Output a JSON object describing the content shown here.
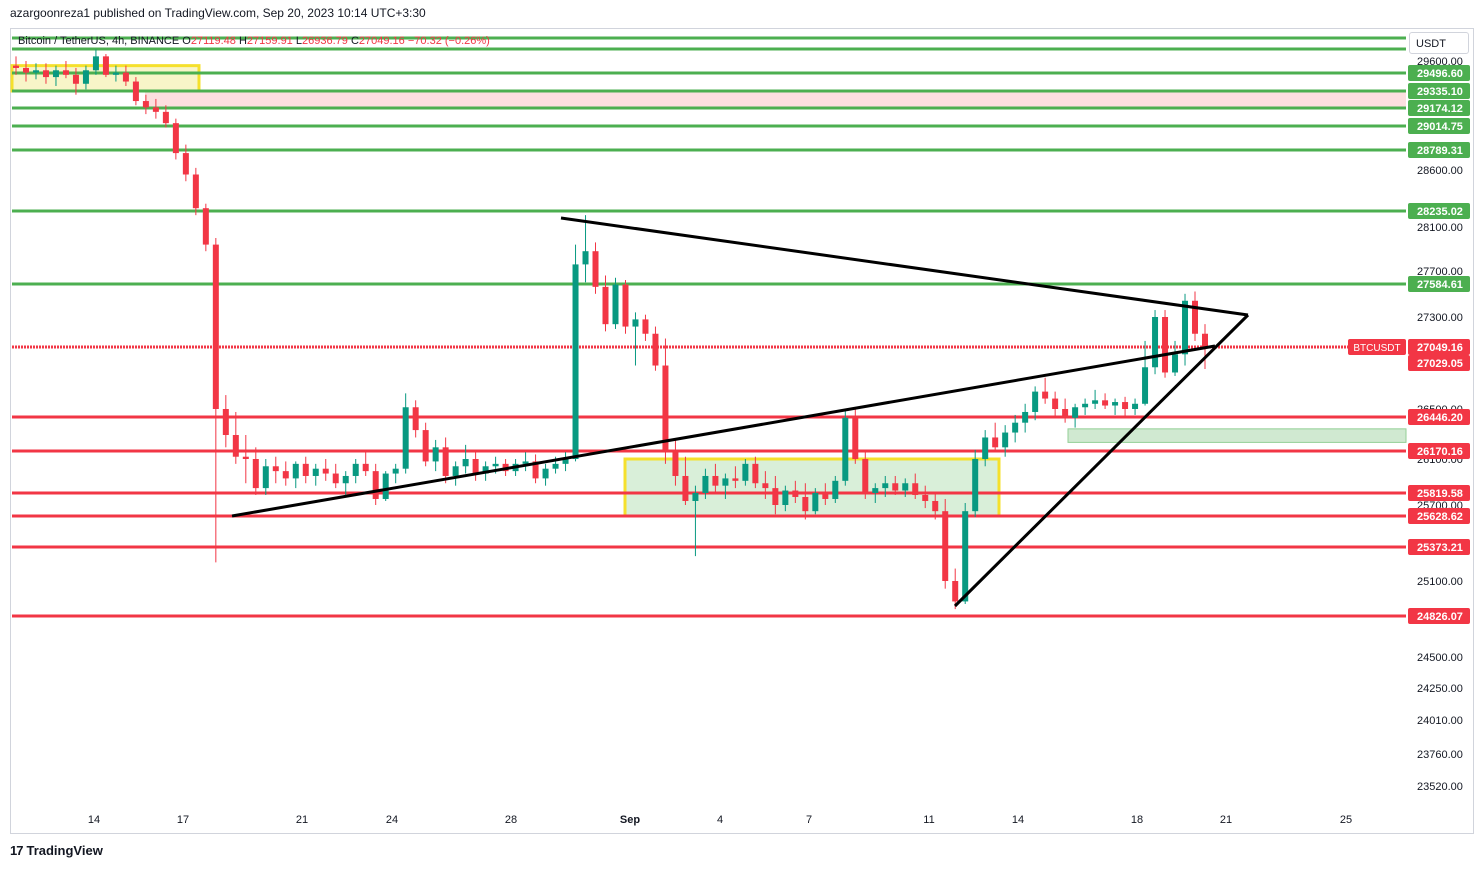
{
  "header": {
    "published": "azargoonreza1 published on TradingView.com, Sep 20, 2023 10:14 UTC+3:30"
  },
  "legend": {
    "symbol": "Bitcoin / TetherUS, 4h, BINANCE",
    "o_label": "O",
    "o_value": "27119.48",
    "h_label": "H",
    "h_value": "27159.91",
    "l_label": "L",
    "l_value": "26936.79",
    "c_label": "C",
    "c_value": "27049.16",
    "change": "−70.32 (−0.26%)"
  },
  "currency_button": "USDT",
  "footer": {
    "brand": "TradingView",
    "icon": "tradingview-logo-icon"
  },
  "colors": {
    "up": "#089981",
    "down": "#f23645",
    "support": "#f23645",
    "resistance": "#4caf50",
    "zone_yellow": "#f5e02c",
    "zone_green_fill": "#c8e6c9",
    "triangle": "#000000"
  },
  "chart_data": {
    "type": "candlestick",
    "symbol": "BTCUSDT",
    "timeframe": "4h",
    "x_ticks": [
      "14",
      "17",
      "21",
      "24",
      "28",
      "Sep",
      "4",
      "7",
      "11",
      "14",
      "18",
      "21",
      "25"
    ],
    "y_ticks": [
      29600,
      28600,
      28100,
      27700,
      27300,
      26500,
      26100,
      25700,
      25100,
      24500,
      24250,
      24010,
      23760,
      23520
    ],
    "y_tick_labels": [
      "29600.00",
      "28600.00",
      "28100.00",
      "27700.00",
      "27300.00",
      "26500.00",
      "26100.00",
      "25700.00",
      "25100.00",
      "24500.00",
      "24250.00",
      "24010.00",
      "23760.00",
      "23520.00"
    ],
    "ylim": [
      23400,
      29750
    ],
    "current_price": {
      "label": "BTCUSDT",
      "value": "27049.16"
    },
    "resistance_levels": [
      "29496.60",
      "29335.10",
      "29174.12",
      "29014.75",
      "28789.31",
      "28235.02",
      "27584.61"
    ],
    "support_levels": [
      "27029.05",
      "26446.20",
      "26170.16",
      "25819.58",
      "25628.62",
      "25373.21",
      "24826.07"
    ],
    "candles_approx": [
      [
        29560,
        29640,
        29480,
        29540
      ],
      [
        29540,
        29600,
        29420,
        29500
      ],
      [
        29500,
        29580,
        29440,
        29520
      ],
      [
        29520,
        29580,
        29400,
        29460
      ],
      [
        29460,
        29560,
        29380,
        29520
      ],
      [
        29520,
        29600,
        29450,
        29480
      ],
      [
        29480,
        29540,
        29300,
        29400
      ],
      [
        29400,
        29560,
        29350,
        29520
      ],
      [
        29520,
        29700,
        29480,
        29640
      ],
      [
        29640,
        29660,
        29460,
        29480
      ],
      [
        29480,
        29560,
        29420,
        29500
      ],
      [
        29500,
        29560,
        29380,
        29420
      ],
      [
        29420,
        29460,
        29200,
        29240
      ],
      [
        29240,
        29300,
        29120,
        29180
      ],
      [
        29180,
        29260,
        29080,
        29140
      ],
      [
        29140,
        29200,
        29000,
        29040
      ],
      [
        29040,
        29080,
        28700,
        28760
      ],
      [
        28760,
        28840,
        28500,
        28560
      ],
      [
        28560,
        28620,
        28200,
        28260
      ],
      [
        28260,
        28300,
        27880,
        27940
      ],
      [
        27940,
        28000,
        25250,
        26500
      ],
      [
        26500,
        26660,
        26200,
        26300
      ],
      [
        26300,
        26480,
        26060,
        26120
      ],
      [
        26120,
        26300,
        25900,
        26100
      ],
      [
        26100,
        26200,
        25800,
        25860
      ],
      [
        25860,
        26100,
        25800,
        26040
      ],
      [
        26040,
        26120,
        25900,
        26000
      ],
      [
        26000,
        26080,
        25880,
        25940
      ],
      [
        25940,
        26080,
        25860,
        26060
      ],
      [
        26060,
        26120,
        25900,
        25960
      ],
      [
        25960,
        26060,
        25880,
        26020
      ],
      [
        26020,
        26100,
        25920,
        25980
      ],
      [
        25980,
        26060,
        25860,
        25900
      ],
      [
        25900,
        26000,
        25780,
        25960
      ],
      [
        25960,
        26100,
        25900,
        26060
      ],
      [
        26060,
        26160,
        25960,
        26000
      ],
      [
        26000,
        26060,
        25700,
        25760
      ],
      [
        25760,
        26000,
        25740,
        25980
      ],
      [
        25980,
        26060,
        25900,
        26020
      ],
      [
        26020,
        26680,
        25980,
        26520
      ],
      [
        26520,
        26600,
        26280,
        26340
      ],
      [
        26340,
        26400,
        26040,
        26080
      ],
      [
        26080,
        26260,
        26000,
        26200
      ],
      [
        26200,
        26280,
        25900,
        25960
      ],
      [
        25960,
        26080,
        25880,
        26040
      ],
      [
        26040,
        26220,
        25980,
        26100
      ],
      [
        26100,
        26160,
        25920,
        25980
      ],
      [
        25980,
        26080,
        25920,
        26040
      ],
      [
        26040,
        26120,
        25980,
        26060
      ],
      [
        26060,
        26100,
        25960,
        26000
      ],
      [
        26000,
        26100,
        25960,
        26060
      ],
      [
        26060,
        26160,
        26000,
        26080
      ],
      [
        26080,
        26140,
        25900,
        25940
      ],
      [
        25940,
        26060,
        25880,
        26020
      ],
      [
        26020,
        26120,
        25980,
        26060
      ],
      [
        26060,
        26160,
        26000,
        26100
      ],
      [
        26100,
        27940,
        26080,
        27760
      ],
      [
        27760,
        28200,
        27600,
        27880
      ],
      [
        27880,
        27960,
        27500,
        27560
      ],
      [
        27560,
        27660,
        27180,
        27240
      ],
      [
        27240,
        27640,
        27200,
        27580
      ],
      [
        27580,
        27620,
        27160,
        27220
      ],
      [
        27220,
        27340,
        27000,
        27280
      ],
      [
        27280,
        27320,
        27100,
        27160
      ],
      [
        27160,
        27220,
        26940,
        27000
      ],
      [
        27000,
        27120,
        26060,
        26180
      ],
      [
        26180,
        26260,
        25880,
        25960
      ],
      [
        25960,
        26120,
        25700,
        25740
      ],
      [
        25740,
        25880,
        25300,
        25820
      ],
      [
        25820,
        26020,
        25760,
        25960
      ],
      [
        25960,
        26060,
        25820,
        25880
      ],
      [
        25880,
        25980,
        25760,
        25940
      ],
      [
        25940,
        26040,
        25860,
        25920
      ],
      [
        25920,
        26100,
        25880,
        26060
      ],
      [
        26060,
        26120,
        25860,
        25900
      ],
      [
        25900,
        26000,
        25760,
        25860
      ],
      [
        25860,
        25960,
        25640,
        25700
      ],
      [
        25700,
        25880,
        25660,
        25840
      ],
      [
        25840,
        25920,
        25720,
        25780
      ],
      [
        25780,
        25900,
        25600,
        25660
      ],
      [
        25660,
        25860,
        25640,
        25820
      ],
      [
        25820,
        25900,
        25700,
        25760
      ],
      [
        25760,
        25960,
        25720,
        25920
      ],
      [
        25920,
        26500,
        25880,
        26440
      ],
      [
        26440,
        26500,
        26060,
        26100
      ],
      [
        26100,
        26160,
        25760,
        25820
      ],
      [
        25820,
        25900,
        25720,
        25860
      ],
      [
        25860,
        25960,
        25780,
        25900
      ],
      [
        25900,
        25960,
        25800,
        25840
      ],
      [
        25840,
        25940,
        25780,
        25900
      ],
      [
        25900,
        25980,
        25760,
        25800
      ],
      [
        25800,
        25880,
        25680,
        25740
      ],
      [
        25740,
        25820,
        25600,
        25660
      ],
      [
        25660,
        25760,
        25040,
        25100
      ],
      [
        25100,
        25200,
        24880,
        24940
      ],
      [
        24940,
        25720,
        24920,
        25660
      ],
      [
        25660,
        26180,
        25620,
        26100
      ],
      [
        26100,
        26340,
        26040,
        26280
      ],
      [
        26280,
        26400,
        26160,
        26200
      ],
      [
        26200,
        26380,
        26120,
        26320
      ],
      [
        26320,
        26460,
        26240,
        26400
      ],
      [
        26400,
        26560,
        26320,
        26480
      ],
      [
        26480,
        26760,
        26420,
        26700
      ],
      [
        26700,
        26860,
        26560,
        26620
      ],
      [
        26620,
        26700,
        26440,
        26500
      ],
      [
        26500,
        26620,
        26400,
        26440
      ],
      [
        26440,
        26560,
        26360,
        26520
      ],
      [
        26520,
        26620,
        26460,
        26560
      ],
      [
        26560,
        26720,
        26500,
        26600
      ],
      [
        26600,
        26680,
        26500,
        26540
      ],
      [
        26540,
        26620,
        26460,
        26580
      ],
      [
        26580,
        26640,
        26440,
        26500
      ],
      [
        26500,
        26620,
        26460,
        26560
      ],
      [
        26560,
        27100,
        26540,
        26980
      ],
      [
        26980,
        27360,
        26900,
        27300
      ],
      [
        27300,
        27360,
        26860,
        26920
      ],
      [
        26920,
        27100,
        26880,
        27040
      ],
      [
        27040,
        27500,
        27000,
        27440
      ],
      [
        27440,
        27520,
        27100,
        27160
      ],
      [
        27160,
        27240,
        26960,
        27049.16
      ]
    ],
    "patterns": {
      "triangle": "symmetrical triangle",
      "zones": [
        "top consolidation box",
        "range box Sep 1–13",
        "demand zone near 26300"
      ]
    }
  }
}
